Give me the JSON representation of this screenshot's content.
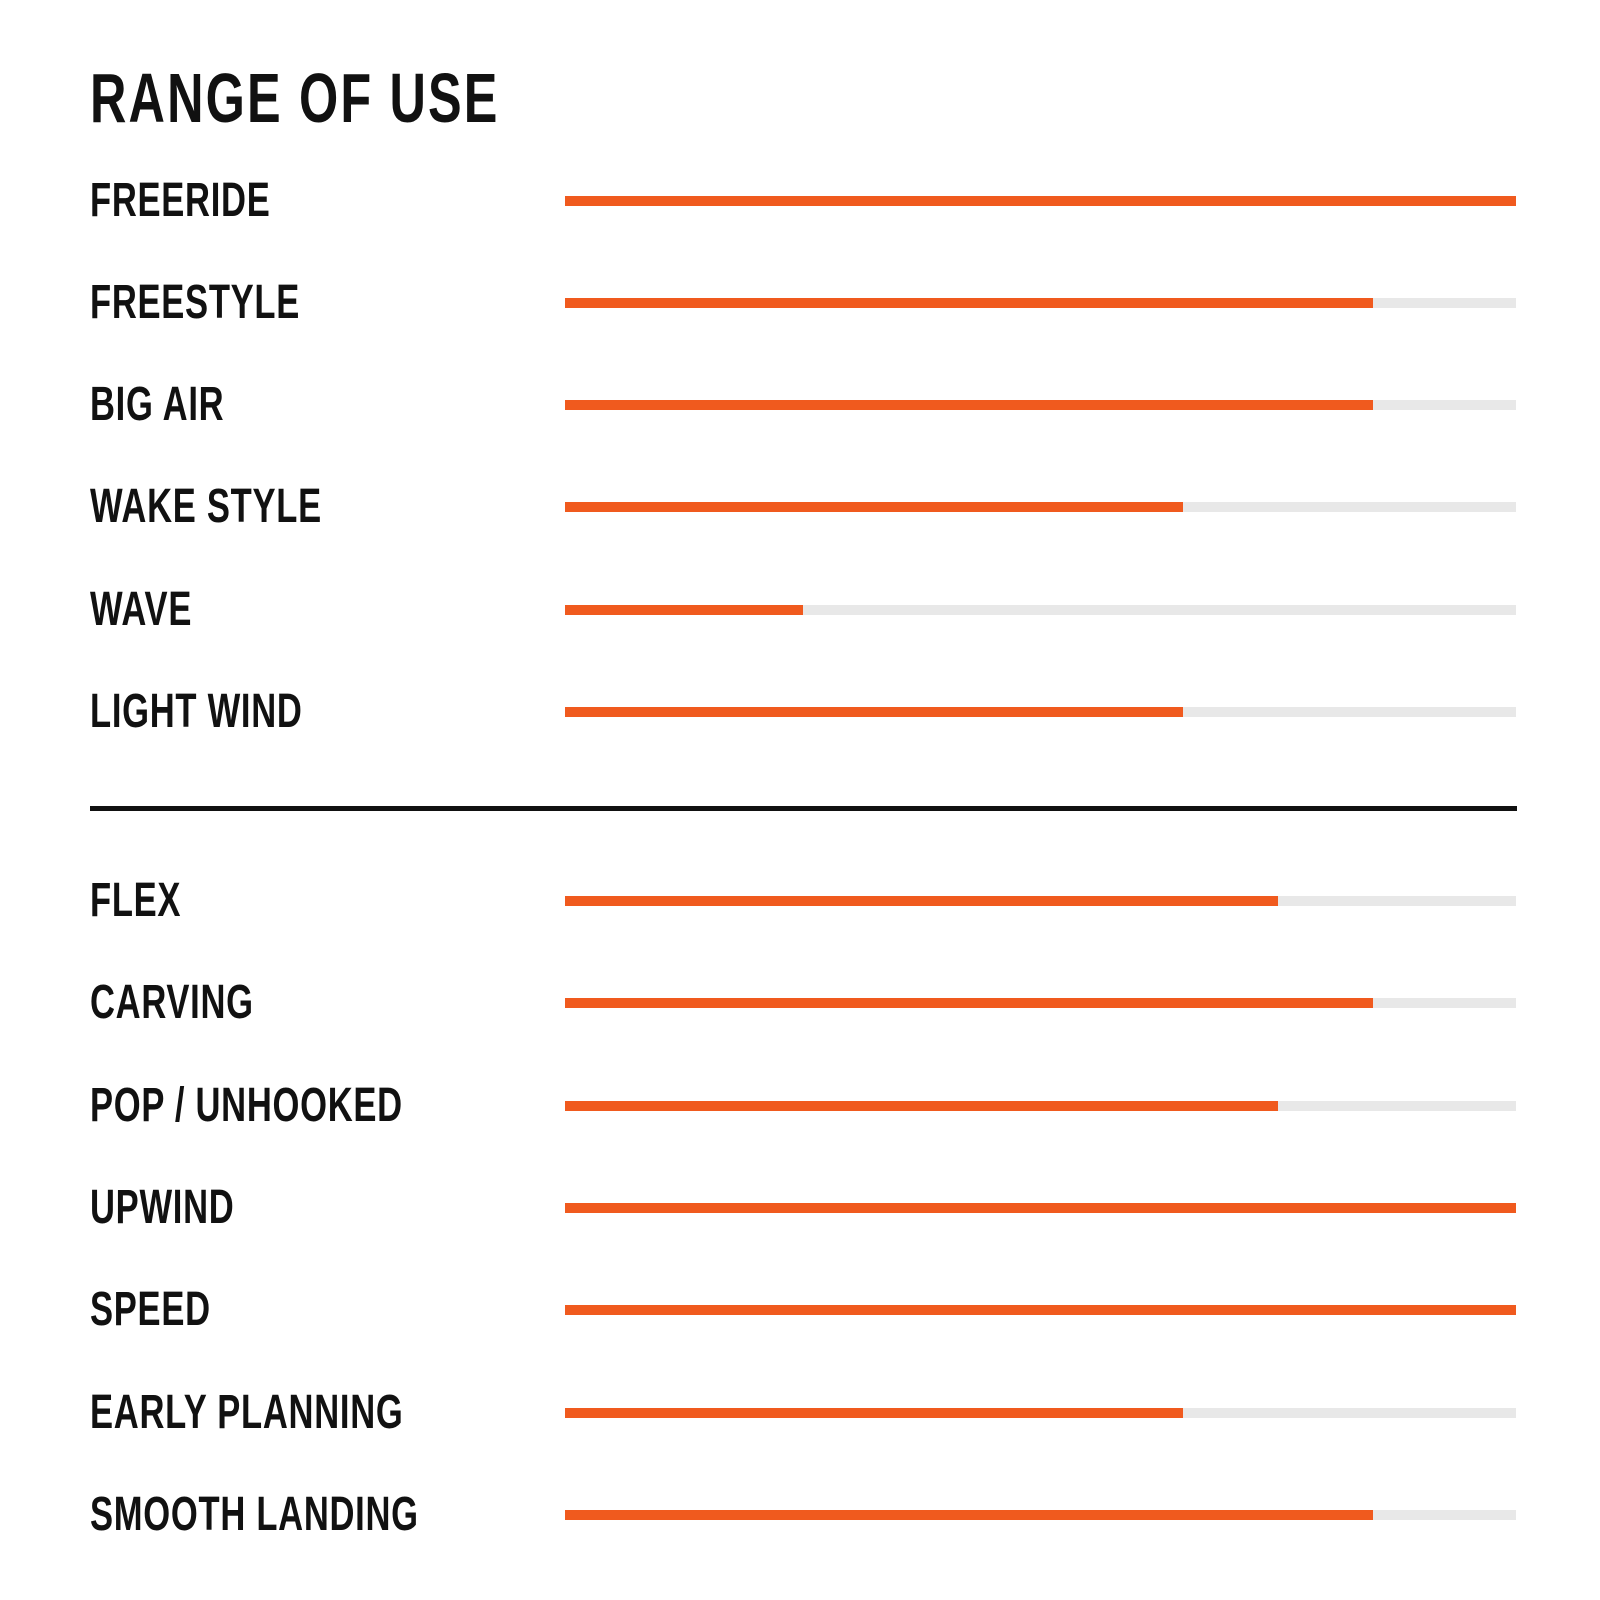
{
  "chart_data": {
    "type": "bar",
    "title": "RANGE OF USE",
    "orientation": "horizontal",
    "xlim": [
      0,
      1
    ],
    "colors": {
      "fill": "#f05a1e",
      "track": "#e8e8e8",
      "divider": "#111111"
    },
    "groups": [
      {
        "categories": [
          "FREERIDE",
          "FREESTYLE",
          "BIG AIR",
          "WAKE STYLE",
          "WAVE",
          "LIGHT WIND"
        ],
        "values": [
          1.0,
          0.85,
          0.85,
          0.65,
          0.25,
          0.65
        ]
      },
      {
        "categories": [
          "FLEX",
          "CARVING",
          "POP / UNHOOKED",
          "UPWIND",
          "SPEED",
          "EARLY PLANNING",
          "SMOOTH LANDING"
        ],
        "values": [
          0.75,
          0.85,
          0.75,
          1.0,
          1.0,
          0.65,
          0.85
        ]
      }
    ]
  }
}
